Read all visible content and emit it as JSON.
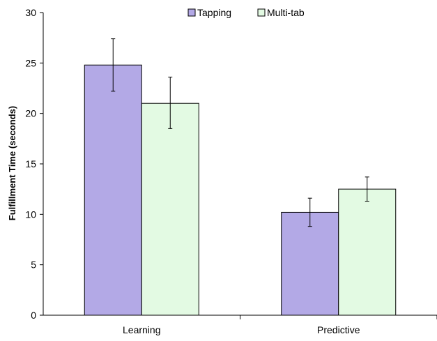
{
  "chart_data": {
    "type": "bar",
    "title": "",
    "xlabel": "",
    "ylabel": "Fulfillment Time (seconds)",
    "categories": [
      "Learning",
      "Predictive"
    ],
    "ylim": [
      0,
      30
    ],
    "yticks": [
      0,
      5,
      10,
      15,
      20,
      25,
      30
    ],
    "grid": false,
    "legend_position": "top-center",
    "series": [
      {
        "name": "Tapping",
        "color": "#b3a9e6",
        "values": [
          24.8,
          10.2
        ],
        "error_low": [
          22.2,
          8.8
        ],
        "error_high": [
          27.4,
          11.6
        ]
      },
      {
        "name": "Multi-tab",
        "color": "#e3fae3",
        "values": [
          21.0,
          12.5
        ],
        "error_low": [
          18.5,
          11.3
        ],
        "error_high": [
          23.6,
          13.7
        ]
      }
    ]
  }
}
